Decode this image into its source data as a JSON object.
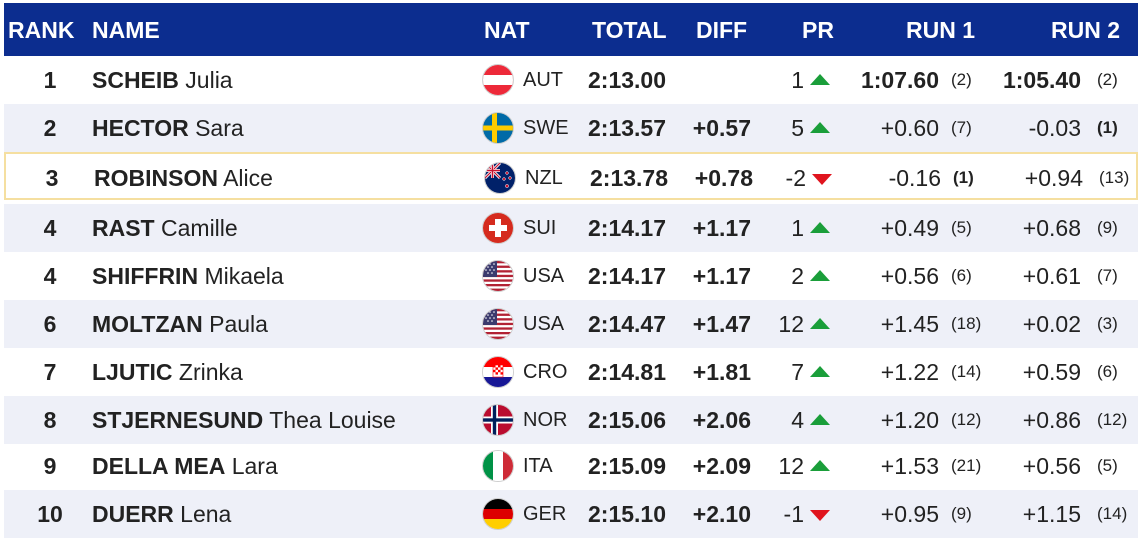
{
  "headers": {
    "rank": "RANK",
    "name": "NAME",
    "nat": "NAT",
    "total": "TOTAL",
    "diff": "DIFF",
    "pr": "PR",
    "run1": "RUN 1",
    "run2": "RUN 2"
  },
  "colors": {
    "header_bg": "#0c2d8f",
    "alt_row": "#eef0f8",
    "highlight_border": "#f5dfa0",
    "arrow_up": "#1a9e3a",
    "arrow_down": "#e0141e"
  },
  "rows": [
    {
      "rank": "1",
      "last": "SCHEIB",
      "first": "Julia",
      "flag": "austria-flag-icon",
      "nat": "AUT",
      "total": "2:13.00",
      "diff": "",
      "pr": "1",
      "pr_dir": "up",
      "run1_time": "1:07.60",
      "run1_rank": "(2)",
      "run2_time": "1:05.40",
      "run2_rank": "(2)"
    },
    {
      "rank": "2",
      "last": "HECTOR",
      "first": "Sara",
      "flag": "sweden-flag-icon",
      "nat": "SWE",
      "total": "2:13.57",
      "diff": "+0.57",
      "pr": "5",
      "pr_dir": "up",
      "run1_time": "+0.60",
      "run1_rank": "(7)",
      "run2_time": "-0.03",
      "run2_rank": "(1)"
    },
    {
      "rank": "3",
      "last": "ROBINSON",
      "first": "Alice",
      "flag": "new-zealand-flag-icon",
      "nat": "NZL",
      "total": "2:13.78",
      "diff": "+0.78",
      "pr": "-2",
      "pr_dir": "down",
      "run1_time": "-0.16",
      "run1_rank": "(1)",
      "run2_time": "+0.94",
      "run2_rank": "(13)"
    },
    {
      "rank": "4",
      "last": "RAST",
      "first": "Camille",
      "flag": "switzerland-flag-icon",
      "nat": "SUI",
      "total": "2:14.17",
      "diff": "+1.17",
      "pr": "1",
      "pr_dir": "up",
      "run1_time": "+0.49",
      "run1_rank": "(5)",
      "run2_time": "+0.68",
      "run2_rank": "(9)"
    },
    {
      "rank": "4",
      "last": "SHIFFRIN",
      "first": "Mikaela",
      "flag": "usa-flag-icon",
      "nat": "USA",
      "total": "2:14.17",
      "diff": "+1.17",
      "pr": "2",
      "pr_dir": "up",
      "run1_time": "+0.56",
      "run1_rank": "(6)",
      "run2_time": "+0.61",
      "run2_rank": "(7)"
    },
    {
      "rank": "6",
      "last": "MOLTZAN",
      "first": "Paula",
      "flag": "usa-flag-icon",
      "nat": "USA",
      "total": "2:14.47",
      "diff": "+1.47",
      "pr": "12",
      "pr_dir": "up",
      "run1_time": "+1.45",
      "run1_rank": "(18)",
      "run2_time": "+0.02",
      "run2_rank": "(3)"
    },
    {
      "rank": "7",
      "last": "LJUTIC",
      "first": "Zrinka",
      "flag": "croatia-flag-icon",
      "nat": "CRO",
      "total": "2:14.81",
      "diff": "+1.81",
      "pr": "7",
      "pr_dir": "up",
      "run1_time": "+1.22",
      "run1_rank": "(14)",
      "run2_time": "+0.59",
      "run2_rank": "(6)"
    },
    {
      "rank": "8",
      "last": "STJERNESUND",
      "first": "Thea Louise",
      "flag": "norway-flag-icon",
      "nat": "NOR",
      "total": "2:15.06",
      "diff": "+2.06",
      "pr": "4",
      "pr_dir": "up",
      "run1_time": "+1.20",
      "run1_rank": "(12)",
      "run2_time": "+0.86",
      "run2_rank": "(12)"
    },
    {
      "rank": "9",
      "last": "DELLA MEA",
      "first": "Lara",
      "flag": "italy-flag-icon",
      "nat": "ITA",
      "total": "2:15.09",
      "diff": "+2.09",
      "pr": "12",
      "pr_dir": "up",
      "run1_time": "+1.53",
      "run1_rank": "(21)",
      "run2_time": "+0.56",
      "run2_rank": "(5)"
    },
    {
      "rank": "10",
      "last": "DUERR",
      "first": "Lena",
      "flag": "germany-flag-icon",
      "nat": "GER",
      "total": "2:15.10",
      "diff": "+2.10",
      "pr": "-1",
      "pr_dir": "down",
      "run1_time": "+0.95",
      "run1_rank": "(9)",
      "run2_time": "+1.15",
      "run2_rank": "(14)"
    }
  ]
}
